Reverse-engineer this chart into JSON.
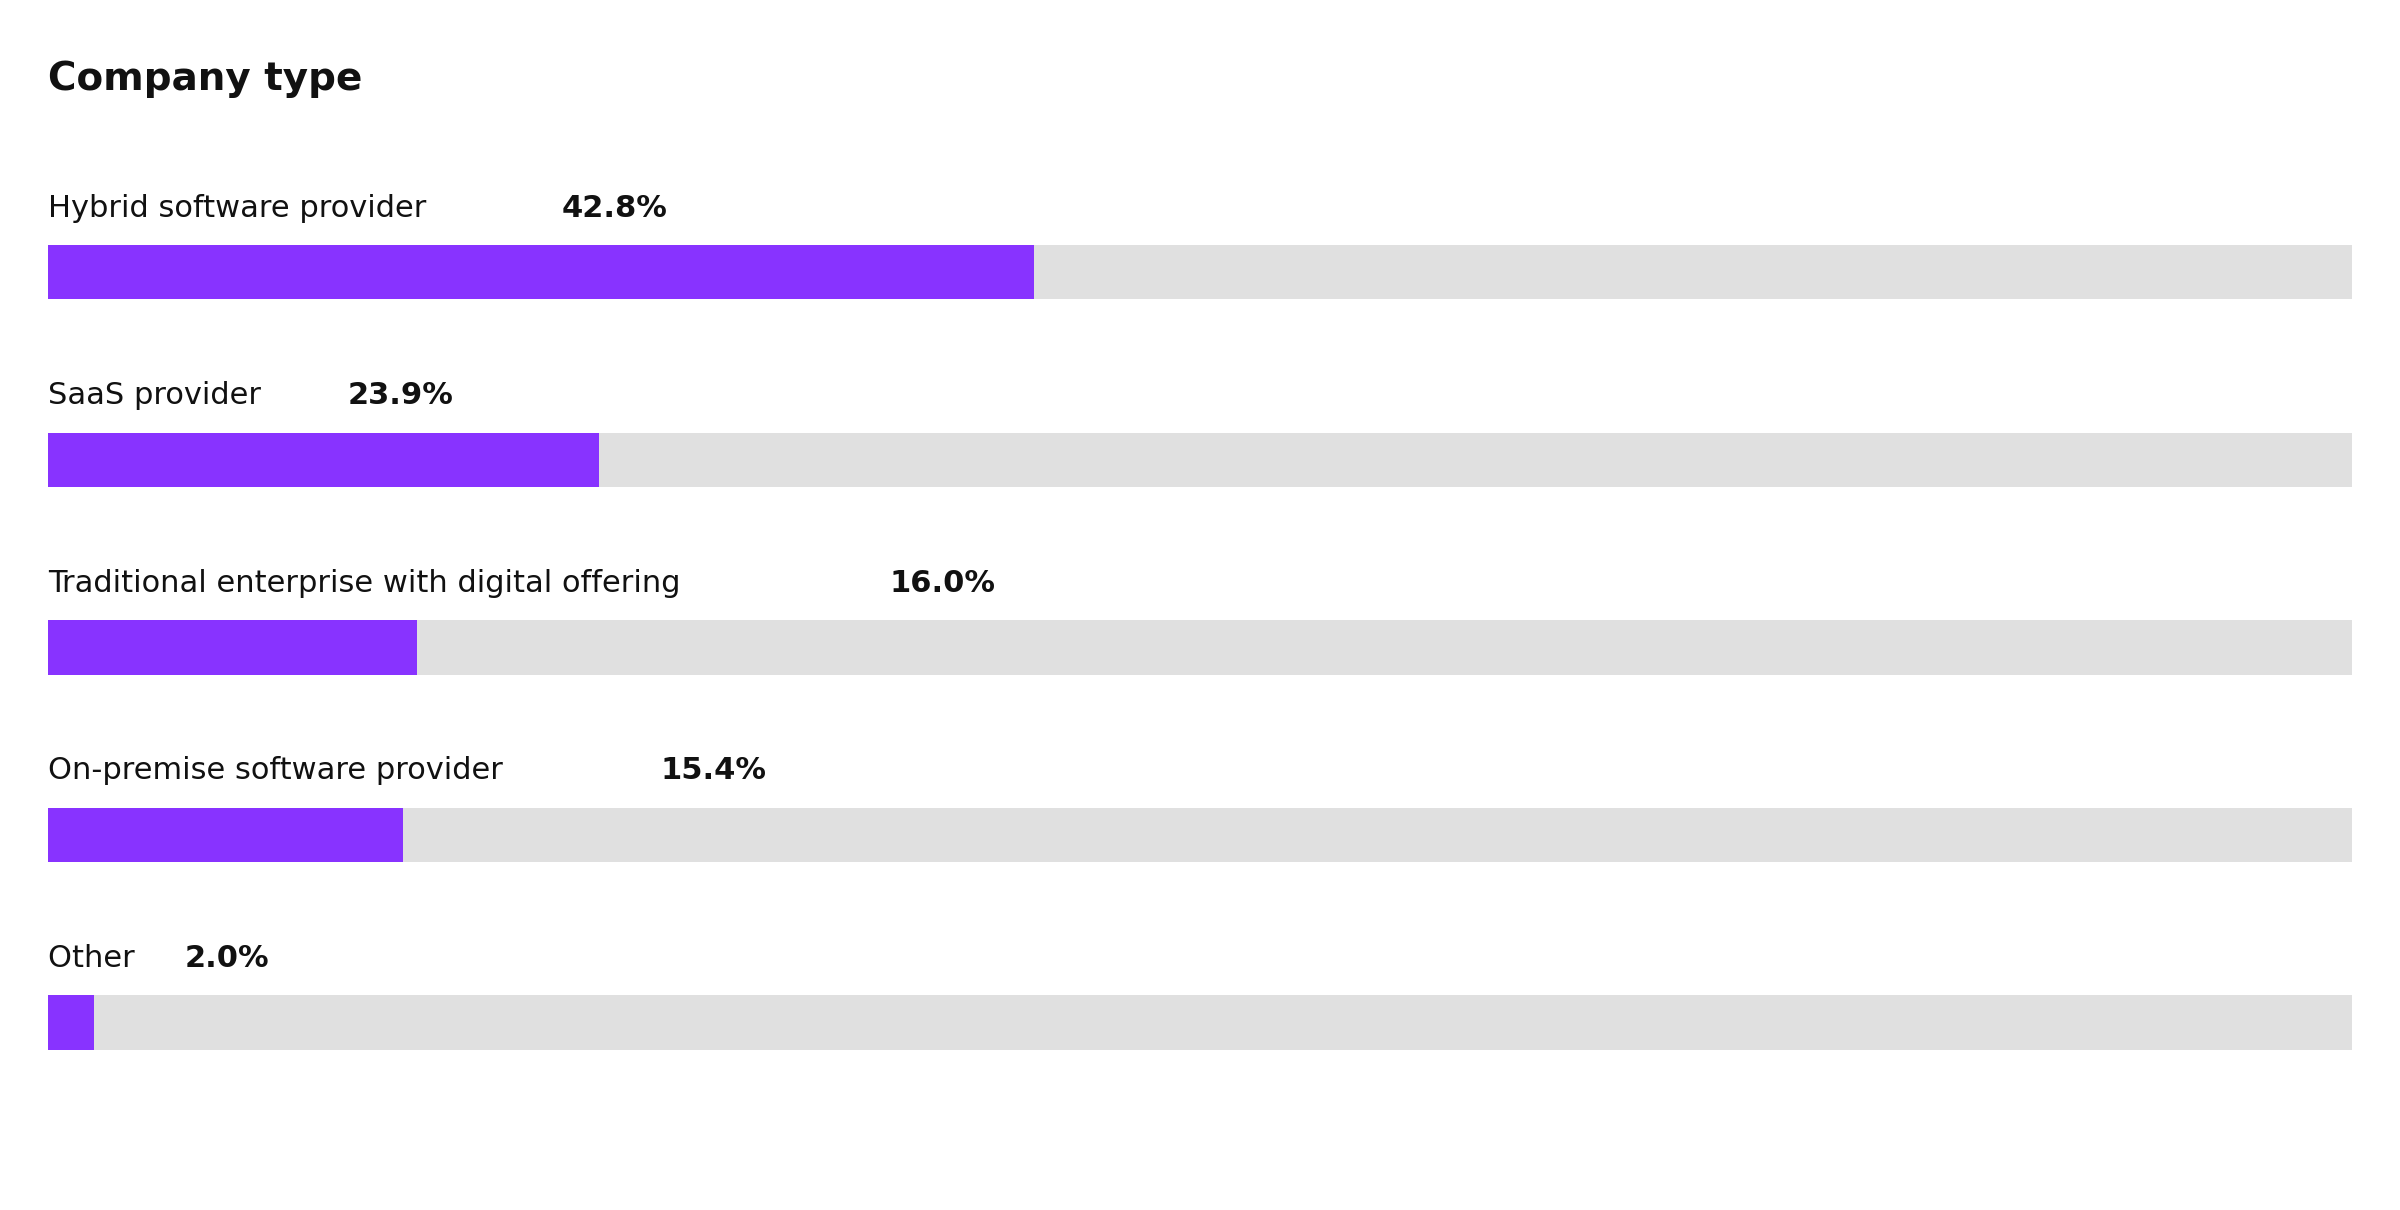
{
  "title": "Company type",
  "categories": [
    "Hybrid software provider",
    "SaaS provider",
    "Traditional enterprise with digital offering",
    "On-premise software provider",
    "Other"
  ],
  "values": [
    42.8,
    23.9,
    16.0,
    15.4,
    2.0
  ],
  "bar_color": "#8833ff",
  "bg_color": "#e0e0e0",
  "background": "#ffffff",
  "title_fontsize": 28,
  "label_fontsize": 22,
  "pct_fontsize": 22,
  "max_value": 100
}
